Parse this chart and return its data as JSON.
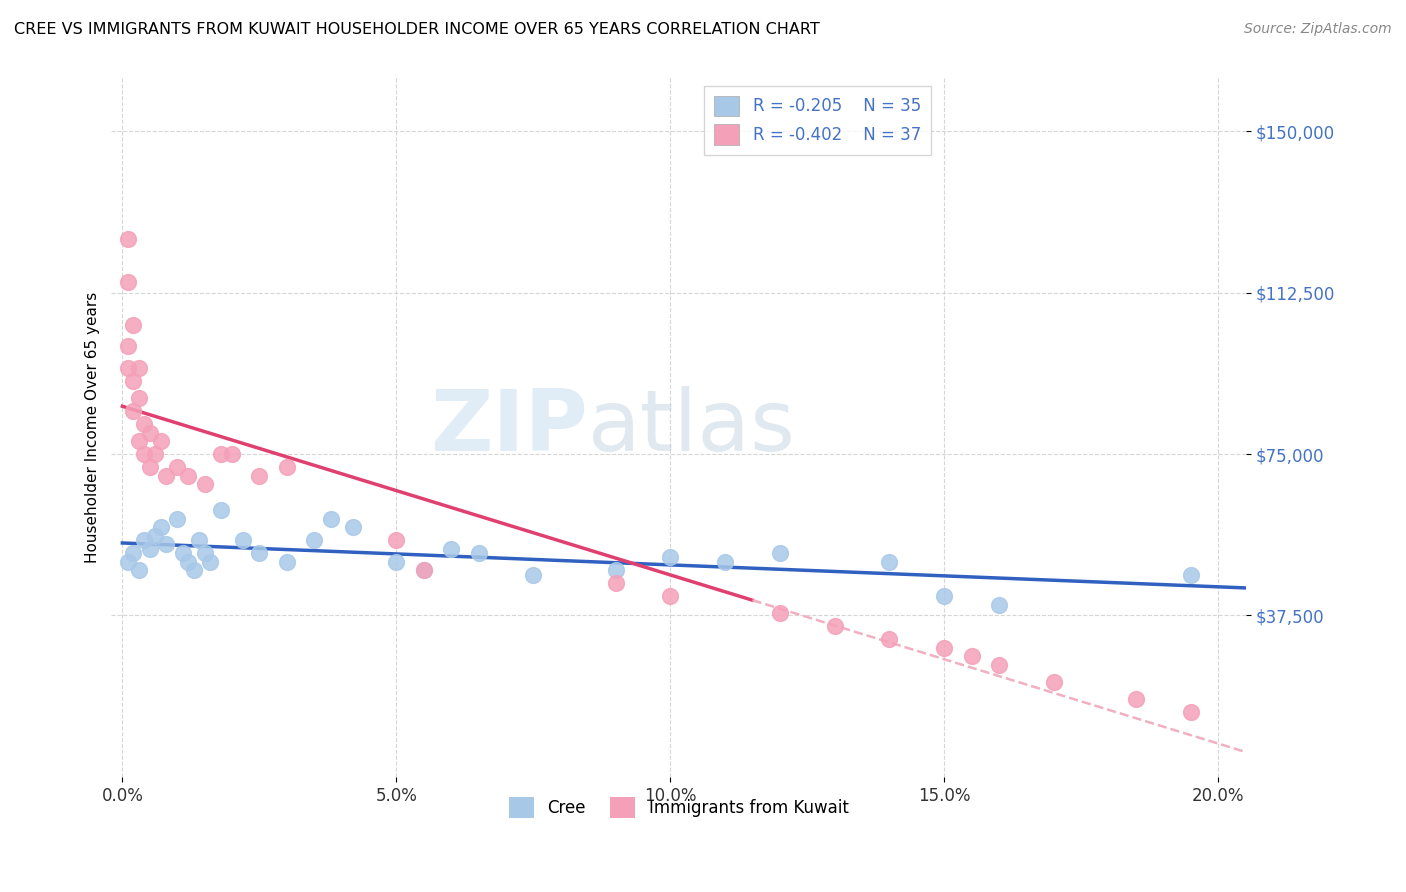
{
  "title": "CREE VS IMMIGRANTS FROM KUWAIT HOUSEHOLDER INCOME OVER 65 YEARS CORRELATION CHART",
  "source": "Source: ZipAtlas.com",
  "ylabel": "Householder Income Over 65 years",
  "xlabel_ticks": [
    "0.0%",
    "5.0%",
    "10.0%",
    "15.0%",
    "20.0%"
  ],
  "xlabel_vals": [
    0.0,
    0.05,
    0.1,
    0.15,
    0.2
  ],
  "ytick_labels": [
    "$37,500",
    "$75,000",
    "$112,500",
    "$150,000"
  ],
  "ytick_vals": [
    37500,
    75000,
    112500,
    150000
  ],
  "ymin": 0,
  "ymax": 162500,
  "xmin": -0.002,
  "xmax": 0.205,
  "legend1_R": "-0.205",
  "legend1_N": "35",
  "legend2_R": "-0.402",
  "legend2_N": "37",
  "cree_color": "#a8c8e8",
  "kuwait_color": "#f4a0b8",
  "trendline_cree_color": "#3060c0",
  "trendline_kuwait_color": "#e04070",
  "trendline_kuwait_ext_color": "#f0b0c0",
  "watermark_zip": "ZIP",
  "watermark_atlas": "atlas",
  "cree_x": [
    0.001,
    0.002,
    0.003,
    0.004,
    0.005,
    0.006,
    0.007,
    0.008,
    0.01,
    0.011,
    0.012,
    0.013,
    0.014,
    0.015,
    0.016,
    0.018,
    0.022,
    0.025,
    0.03,
    0.035,
    0.038,
    0.042,
    0.05,
    0.055,
    0.06,
    0.065,
    0.075,
    0.09,
    0.1,
    0.11,
    0.12,
    0.14,
    0.15,
    0.16,
    0.195
  ],
  "cree_y": [
    50000,
    52000,
    48000,
    55000,
    53000,
    56000,
    58000,
    54000,
    60000,
    52000,
    50000,
    48000,
    55000,
    52000,
    50000,
    62000,
    55000,
    52000,
    50000,
    55000,
    60000,
    58000,
    50000,
    48000,
    53000,
    52000,
    47000,
    48000,
    51000,
    50000,
    52000,
    50000,
    42000,
    40000,
    47000
  ],
  "kuwait_x": [
    0.001,
    0.001,
    0.001,
    0.001,
    0.002,
    0.002,
    0.002,
    0.003,
    0.003,
    0.003,
    0.004,
    0.004,
    0.005,
    0.005,
    0.006,
    0.007,
    0.008,
    0.01,
    0.012,
    0.015,
    0.018,
    0.02,
    0.025,
    0.03,
    0.05,
    0.055,
    0.09,
    0.1,
    0.12,
    0.13,
    0.14,
    0.15,
    0.155,
    0.16,
    0.17,
    0.185,
    0.195
  ],
  "kuwait_y": [
    125000,
    115000,
    100000,
    95000,
    105000,
    92000,
    85000,
    95000,
    88000,
    78000,
    82000,
    75000,
    80000,
    72000,
    75000,
    78000,
    70000,
    72000,
    70000,
    68000,
    75000,
    75000,
    70000,
    72000,
    55000,
    48000,
    45000,
    42000,
    38000,
    35000,
    32000,
    30000,
    28000,
    26000,
    22000,
    18000,
    15000
  ]
}
